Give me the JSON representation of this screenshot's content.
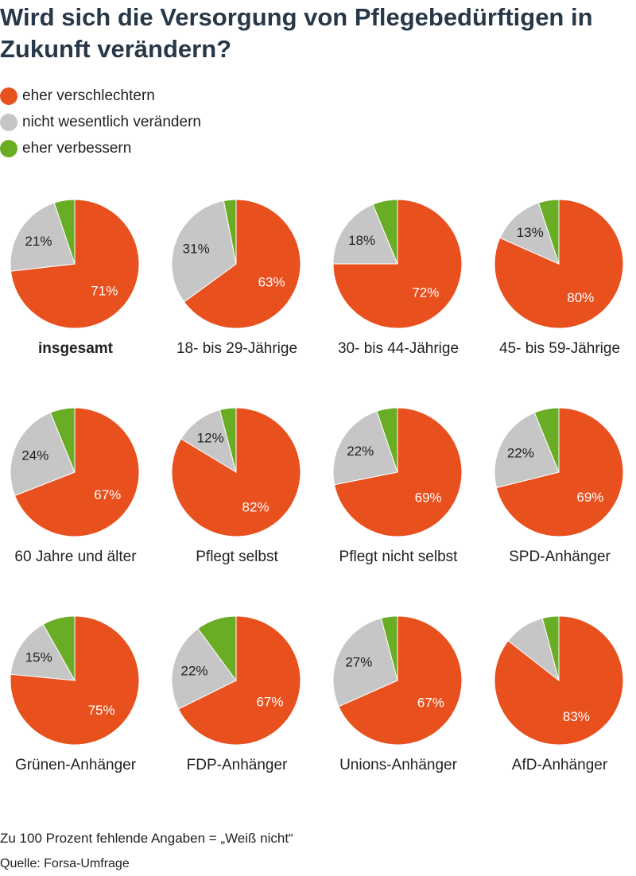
{
  "title": "Wird sich die Versorgung von Pflegebedürftigen in Zukunft verändern?",
  "legend": [
    {
      "label": "eher verschlechtern",
      "color": "#e8501e"
    },
    {
      "label": "nicht wesentlich verändern",
      "color": "#c6c6c6"
    },
    {
      "label": "eher verbessern",
      "color": "#69ad24"
    }
  ],
  "footnote": "Zu 100 Prozent fehlende Angaben = „Weiß nicht“",
  "source": "Quelle: Forsa-Umfrage",
  "chart_data": {
    "type": "pie",
    "title": "Wird sich die Versorgung von Pflegebedürftigen in Zukunft verändern?",
    "series_names": [
      "eher verschlechtern",
      "nicht wesentlich verändern",
      "eher verbessern"
    ],
    "colors": [
      "#e8501e",
      "#c6c6c6",
      "#69ad24"
    ],
    "pies": [
      {
        "label": "insgesamt",
        "bold": true,
        "values": [
          71,
          21,
          5
        ],
        "labels": [
          "71%",
          "21%",
          ""
        ]
      },
      {
        "label": "18- bis 29-Jährige",
        "values": [
          63,
          31,
          3
        ],
        "labels": [
          "63%",
          "31%",
          ""
        ]
      },
      {
        "label": "30- bis 44-Jährige",
        "values": [
          72,
          18,
          6
        ],
        "labels": [
          "72%",
          "18%",
          ""
        ]
      },
      {
        "label": "45- bis 59-Jährige",
        "values": [
          80,
          13,
          5
        ],
        "labels": [
          "80%",
          "13%",
          ""
        ]
      },
      {
        "label": "60 Jahre und älter",
        "values": [
          67,
          24,
          6
        ],
        "labels": [
          "67%",
          "24%",
          ""
        ]
      },
      {
        "label": "Pflegt selbst",
        "values": [
          82,
          12,
          4
        ],
        "labels": [
          "82%",
          "12%",
          ""
        ]
      },
      {
        "label": "Pflegt nicht selbst",
        "values": [
          69,
          22,
          5
        ],
        "labels": [
          "69%",
          "22%",
          ""
        ]
      },
      {
        "label": "SPD-Anhänger",
        "values": [
          69,
          22,
          6
        ],
        "labels": [
          "69%",
          "22%",
          ""
        ]
      },
      {
        "label": "Grünen-Anhänger",
        "values": [
          75,
          15,
          8
        ],
        "labels": [
          "75%",
          "15%",
          ""
        ]
      },
      {
        "label": "FDP-Anhänger",
        "values": [
          67,
          22,
          10
        ],
        "labels": [
          "67%",
          "22%",
          ""
        ]
      },
      {
        "label": "Unions-Anhänger",
        "values": [
          67,
          27,
          4
        ],
        "labels": [
          "67%",
          "27%",
          ""
        ]
      },
      {
        "label": "AfD-Anhänger",
        "values": [
          83,
          10,
          4
        ],
        "labels": [
          "83%",
          "",
          ""
        ]
      }
    ]
  }
}
